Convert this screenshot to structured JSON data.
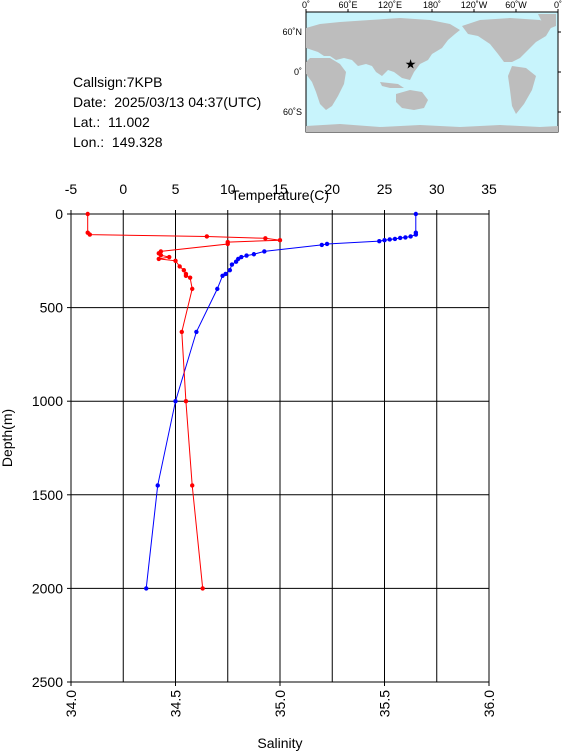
{
  "station": {
    "callsign": "Callsign:7KPB",
    "date": "Date:  2025/03/13 04:37(UTC)",
    "lat": "Lat.:  11.002",
    "lon": "Lon.:  149.328"
  },
  "map": {
    "top_ticks": [
      "0˚",
      "60˚E",
      "120˚E",
      "180˚",
      "120˚W",
      "60˚W",
      "0˚"
    ],
    "right_ticks": [
      "60˚N",
      "0˚",
      "60˚S"
    ],
    "colors": {
      "ocean": "#c8f4fc",
      "land": "#bdbdbd",
      "marker": "#ff0000"
    },
    "marker": {
      "lon": 149.328,
      "lat": 11.002,
      "icon": "red-star"
    }
  },
  "chart_data": {
    "type": "line",
    "title": "",
    "xlabel_top": "Temperature(C)",
    "xlabel_bottom": "Salinity",
    "ylabel": "Depth(m)",
    "ylim": [
      2500,
      0
    ],
    "y_ticks": [
      "0",
      "500",
      "1000",
      "1500",
      "2000",
      "2500"
    ],
    "temperature_range": [
      -5,
      35
    ],
    "temperature_ticks": [
      "-5",
      "0",
      "5",
      "10",
      "15",
      "20",
      "25",
      "30",
      "35"
    ],
    "salinity_range": [
      34.0,
      36.0
    ],
    "salinity_ticks": [
      "34.0",
      "34.5",
      "35.0",
      "35.5",
      "36.0"
    ],
    "grid": "vertical and horizontal",
    "series": [
      {
        "color": "#0000ff",
        "axis": "temperature",
        "points": [
          [
            28.0,
            0
          ],
          [
            28.0,
            100
          ],
          [
            28.0,
            110
          ],
          [
            27.5,
            120
          ],
          [
            27.0,
            125
          ],
          [
            26.5,
            128
          ],
          [
            26.0,
            133
          ],
          [
            25.5,
            136
          ],
          [
            25.0,
            140
          ],
          [
            24.5,
            145
          ],
          [
            19.5,
            160
          ],
          [
            19.0,
            165
          ],
          [
            13.5,
            200
          ],
          [
            12.5,
            215
          ],
          [
            11.8,
            222
          ],
          [
            11.3,
            230
          ],
          [
            11.0,
            240
          ],
          [
            10.8,
            255
          ],
          [
            10.4,
            270
          ],
          [
            10.2,
            300
          ],
          [
            9.8,
            320
          ],
          [
            9.5,
            330
          ],
          [
            9.0,
            400
          ],
          [
            7.0,
            630
          ],
          [
            5.0,
            1000
          ],
          [
            3.3,
            1450
          ],
          [
            2.2,
            2000
          ]
        ]
      },
      {
        "color": "#ff0000",
        "axis": "salinity",
        "points": [
          [
            34.08,
            0
          ],
          [
            34.08,
            100
          ],
          [
            34.09,
            110
          ],
          [
            34.65,
            120
          ],
          [
            34.93,
            130
          ],
          [
            35.0,
            140
          ],
          [
            34.75,
            150
          ],
          [
            34.75,
            160
          ],
          [
            34.43,
            200
          ],
          [
            34.42,
            210
          ],
          [
            34.43,
            220
          ],
          [
            34.47,
            230
          ],
          [
            34.42,
            240
          ],
          [
            34.5,
            250
          ],
          [
            34.52,
            280
          ],
          [
            34.54,
            300
          ],
          [
            34.55,
            320
          ],
          [
            34.55,
            330
          ],
          [
            34.57,
            340
          ],
          [
            34.58,
            400
          ],
          [
            34.53,
            630
          ],
          [
            34.55,
            1000
          ],
          [
            34.58,
            1450
          ],
          [
            34.63,
            2000
          ]
        ]
      }
    ]
  }
}
